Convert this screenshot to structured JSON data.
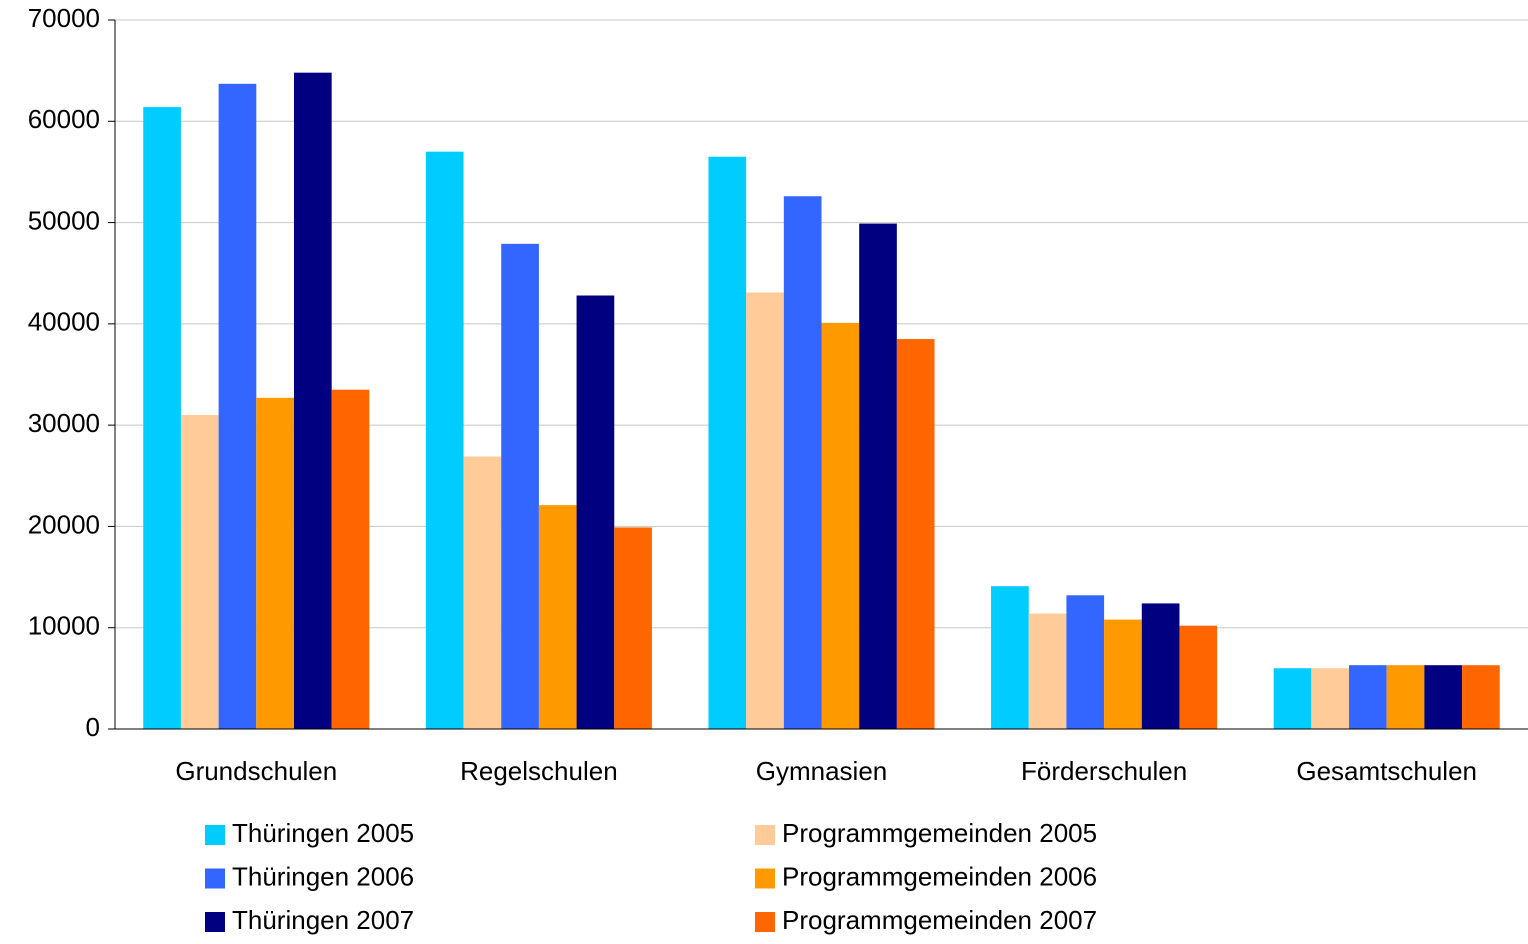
{
  "chart_data": {
    "type": "bar",
    "categories": [
      "Grundschulen",
      "Regelschulen",
      "Gymnasien",
      "Förderschulen",
      "Gesamtschulen"
    ],
    "series": [
      {
        "name": "Thüringen 2005",
        "color": "#00ccff",
        "values": [
          61400,
          57000,
          56500,
          14100,
          6000
        ]
      },
      {
        "name": "Programmgemeinden 2005",
        "color": "#ffcc99",
        "values": [
          31000,
          26900,
          43100,
          11400,
          6000
        ]
      },
      {
        "name": "Thüringen 2006",
        "color": "#3366ff",
        "values": [
          63700,
          47900,
          52600,
          13200,
          6300
        ]
      },
      {
        "name": "Programmgemeinden 2006",
        "color": "#ff9900",
        "values": [
          32700,
          22100,
          40100,
          10800,
          6300
        ]
      },
      {
        "name": "Thüringen 2007",
        "color": "#000080",
        "values": [
          64800,
          42800,
          49900,
          12400,
          6300
        ]
      },
      {
        "name": "Programmgemeinden 2007",
        "color": "#ff6600",
        "values": [
          33500,
          19900,
          38500,
          10200,
          6300
        ]
      }
    ],
    "ylim": [
      0,
      70000
    ],
    "yticks": [
      0,
      10000,
      20000,
      30000,
      40000,
      50000,
      60000,
      70000
    ],
    "grid": true
  }
}
